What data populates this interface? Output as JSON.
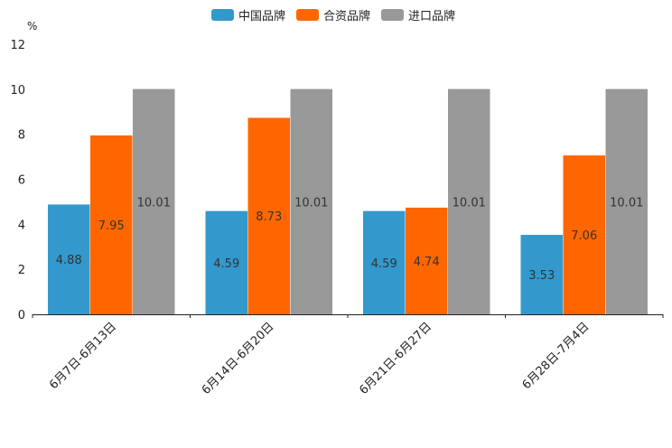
{
  "chart_data": {
    "type": "bar",
    "unit": "%",
    "categories": [
      "6月7日-6月13日",
      "6月14日-6月20日",
      "6月21日-6月27日",
      "6月28日-7月4日"
    ],
    "series": [
      {
        "name": "中国品牌",
        "color": "#3399cc",
        "values": [
          4.88,
          4.59,
          4.59,
          3.53
        ]
      },
      {
        "name": "合资品牌",
        "color": "#ff6600",
        "values": [
          7.95,
          8.73,
          4.74,
          7.06
        ]
      },
      {
        "name": "进口品牌",
        "color": "#999999",
        "values": [
          10.01,
          10.01,
          10.01,
          10.01
        ]
      }
    ],
    "ylim": [
      0,
      12
    ],
    "yticks": [
      0,
      2,
      4,
      6,
      8,
      10,
      12
    ],
    "xlabel": "",
    "ylabel": "%",
    "legend_position": "top-center"
  }
}
